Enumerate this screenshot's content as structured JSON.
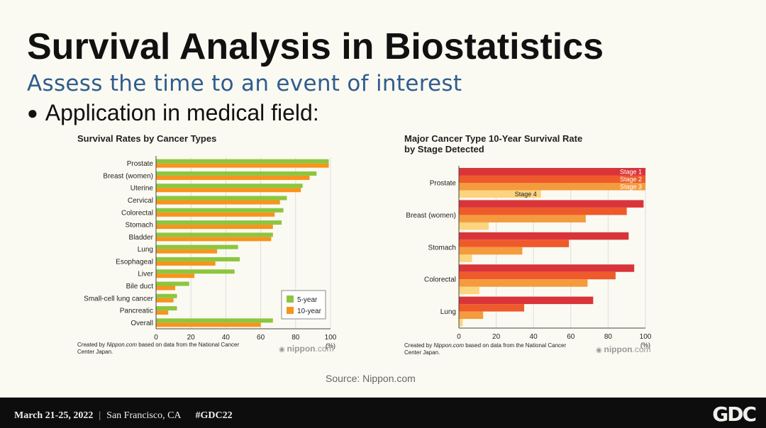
{
  "slide": {
    "title": "Survival Analysis in Biostatistics",
    "subtitle": "Assess the time to an event of interest",
    "bullet": "Application in medical field:",
    "bullet_glyph": "●",
    "source": "Source: Nippon.com"
  },
  "footer": {
    "date": "March 21-25, 2022",
    "separator": "|",
    "location": "San Francisco, CA",
    "hashtag": "#GDC22",
    "logo": "GDC"
  },
  "colors": {
    "green": "#8cc63f",
    "orange": "#f7941d",
    "stage1": "#d9343a",
    "stage2": "#ee5a2b",
    "stage3": "#f49b3e",
    "stage4": "#fcd37f"
  },
  "chart_data": [
    {
      "type": "bar",
      "orientation": "horizontal",
      "title": "Survival Rates by Cancer Types",
      "categories": [
        "Prostate",
        "Breast (women)",
        "Uterine",
        "Cervical",
        "Colorectal",
        "Stomach",
        "Bladder",
        "Lung",
        "Esophageal",
        "Liver",
        "Bile duct",
        "Small-cell lung cancer",
        "Pancreatic",
        "Overall"
      ],
      "series": [
        {
          "name": "5-year",
          "values": [
            99,
            92,
            84,
            75,
            73,
            72,
            67,
            47,
            48,
            45,
            19,
            12,
            12,
            67
          ]
        },
        {
          "name": "10-year",
          "values": [
            99,
            88,
            83,
            71,
            68,
            67,
            66,
            35,
            34,
            22,
            11,
            10,
            7,
            60
          ]
        }
      ],
      "xlim": [
        0,
        100
      ],
      "xticks": [
        0,
        20,
        40,
        60,
        80,
        100
      ],
      "xunit": "(%)",
      "legend_position": "bottom-right",
      "credit": "Created by Nippon.com based on data from the National Cancer Center Japan.",
      "credit_lines": [
        "Created by ",
        "Nippon.com",
        " based on data from the National Cancer",
        "Center Japan."
      ],
      "watermark": {
        "dot": "◉",
        "part1": "nippon",
        "part2": ".com"
      }
    },
    {
      "type": "bar",
      "orientation": "horizontal",
      "title": "Major Cancer Type 10-Year Survival Rate by Stage Detected",
      "title_lines": [
        "Major Cancer Type 10-Year Survival Rate",
        "by Stage Detected"
      ],
      "categories": [
        "Prostate",
        "Breast (women)",
        "Stomach",
        "Colorectal",
        "Lung"
      ],
      "series": [
        {
          "name": "Stage 1",
          "values": [
            100,
            99,
            91,
            94,
            72
          ]
        },
        {
          "name": "Stage 2",
          "values": [
            100,
            90,
            59,
            84,
            35
          ]
        },
        {
          "name": "Stage 3",
          "values": [
            100,
            68,
            34,
            69,
            13
          ]
        },
        {
          "name": "Stage 4",
          "values": [
            44,
            16,
            7,
            11,
            2
          ]
        }
      ],
      "xlim": [
        0,
        100
      ],
      "xticks": [
        0,
        20,
        40,
        60,
        80,
        100
      ],
      "xunit": "(%)",
      "credit": "Created by Nippon.com based on data from the National Cancer Center Japan.",
      "credit_lines": [
        "Created by ",
        "Nippon.com",
        " based on data from the National Cancer",
        "Center Japan."
      ],
      "watermark": {
        "dot": "◉",
        "part1": "nippon",
        "part2": ".com"
      }
    }
  ]
}
